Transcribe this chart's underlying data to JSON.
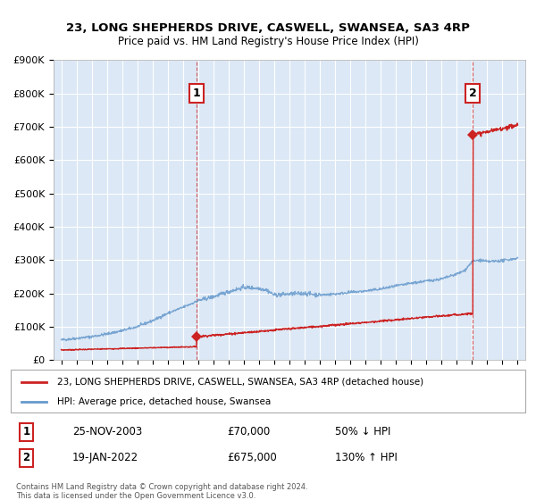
{
  "title": "23, LONG SHEPHERDS DRIVE, CASWELL, SWANSEA, SA3 4RP",
  "subtitle": "Price paid vs. HM Land Registry's House Price Index (HPI)",
  "ylim": [
    0,
    900000
  ],
  "yticks": [
    0,
    100000,
    200000,
    300000,
    400000,
    500000,
    600000,
    700000,
    800000,
    900000
  ],
  "ytick_labels": [
    "£0",
    "£100K",
    "£200K",
    "£300K",
    "£400K",
    "£500K",
    "£600K",
    "£700K",
    "£800K",
    "£900K"
  ],
  "background_color": "#ffffff",
  "plot_background_color": "#dce8f5",
  "hpi_line_color": "#6699cc",
  "price_line_color": "#cc2222",
  "vline_color": "#cc3333",
  "grid_color": "#ffffff",
  "legend_price_label": "23, LONG SHEPHERDS DRIVE, CASWELL, SWANSEA, SA3 4RP (detached house)",
  "legend_hpi_label": "HPI: Average price, detached house, Swansea",
  "sale1_date": "25-NOV-2003",
  "sale1_price": "£70,000",
  "sale1_hpi": "50% ↓ HPI",
  "sale2_date": "19-JAN-2022",
  "sale2_price": "£675,000",
  "sale2_hpi": "130% ↑ HPI",
  "footer": "Contains HM Land Registry data © Crown copyright and database right 2024.\nThis data is licensed under the Open Government Licence v3.0.",
  "sale1_year": 2003.9,
  "sale1_value": 70000,
  "sale2_year": 2022.05,
  "sale2_value": 675000,
  "xlim_left": 1994.5,
  "xlim_right": 2025.5,
  "xtick_start": 1995,
  "xtick_end": 2025
}
